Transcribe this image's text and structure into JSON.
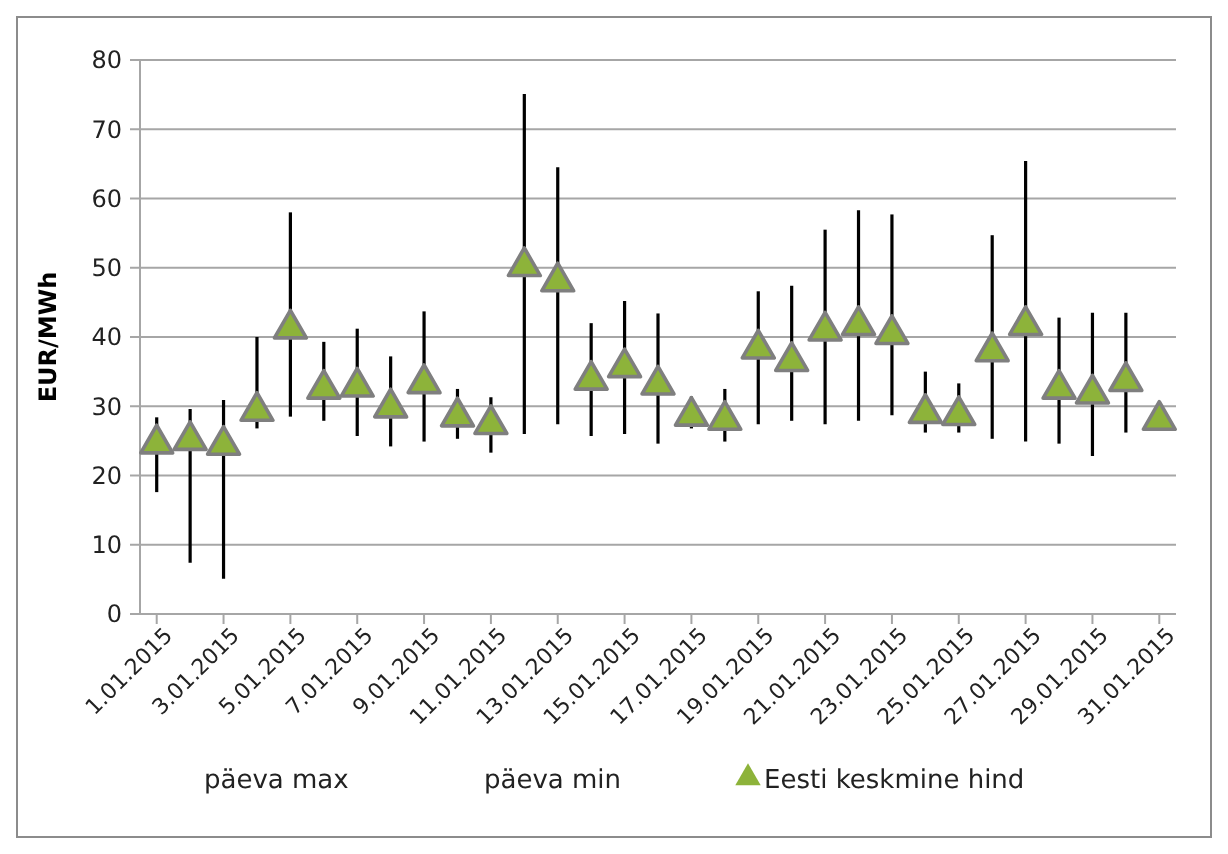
{
  "chart_data": {
    "type": "scatter",
    "ylabel": "EUR/MWh",
    "categories": [
      "1.01.2015",
      null,
      "3.01.2015",
      null,
      "5.01.2015",
      null,
      "7.01.2015",
      null,
      "9.01.2015",
      null,
      "11.01.2015",
      null,
      "13.01.2015",
      null,
      "15.01.2015",
      null,
      "17.01.2015",
      null,
      "19.01.2015",
      null,
      "21.01.2015",
      null,
      "23.01.2015",
      null,
      "25.01.2015",
      null,
      "27.01.2015",
      null,
      "29.01.2015",
      null,
      "31.01.2015"
    ],
    "series": [
      {
        "name": "Eesti keskmine hind",
        "marker": "triangle",
        "color": "#8db33a",
        "values": [
          24.6,
          25.1,
          24.4,
          29.3,
          41.2,
          32.5,
          32.8,
          29.8,
          33.3,
          28.5,
          27.4,
          50.2,
          48,
          33.8,
          35.6,
          33.1,
          28.6,
          28,
          38.3,
          36.5,
          40.9,
          41.7,
          40.4,
          29,
          28.7,
          37.9,
          41.7,
          32.5,
          31.8,
          33.6,
          28
        ],
        "errors": [
          [
            17.6,
            28.4
          ],
          [
            7.4,
            29.6
          ],
          [
            5.1,
            30.9
          ],
          [
            26.8,
            40
          ],
          [
            28.5,
            58
          ],
          [
            27.9,
            39.3
          ],
          [
            25.7,
            41.2
          ],
          [
            24.2,
            37.2
          ],
          [
            24.9,
            43.7
          ],
          [
            25.3,
            32.5
          ],
          [
            23.3,
            31.3
          ],
          [
            26,
            75.1
          ],
          [
            27.4,
            64.5
          ],
          [
            25.7,
            42
          ],
          [
            26,
            45.2
          ],
          [
            24.6,
            43.4
          ],
          [
            26.8,
            31.4
          ],
          [
            24.9,
            32.5
          ],
          [
            27.4,
            46.6
          ],
          [
            27.9,
            47.4
          ],
          [
            27.4,
            55.5
          ],
          [
            27.9,
            58.3
          ],
          [
            28.7,
            57.7
          ],
          [
            26.2,
            35
          ],
          [
            26.2,
            33.3
          ],
          [
            25.3,
            54.7
          ],
          [
            24.9,
            65.4
          ],
          [
            24.6,
            42.8
          ],
          [
            22.8,
            43.5
          ],
          [
            26.2,
            43.5
          ],
          null
        ]
      }
    ],
    "annotations": [
      "päeva max",
      "päeva min"
    ],
    "ylim": [
      0,
      80
    ],
    "yticks": [
      0,
      10,
      20,
      30,
      40,
      50,
      60,
      70,
      80
    ],
    "grid": "y",
    "legend": "bottom"
  }
}
